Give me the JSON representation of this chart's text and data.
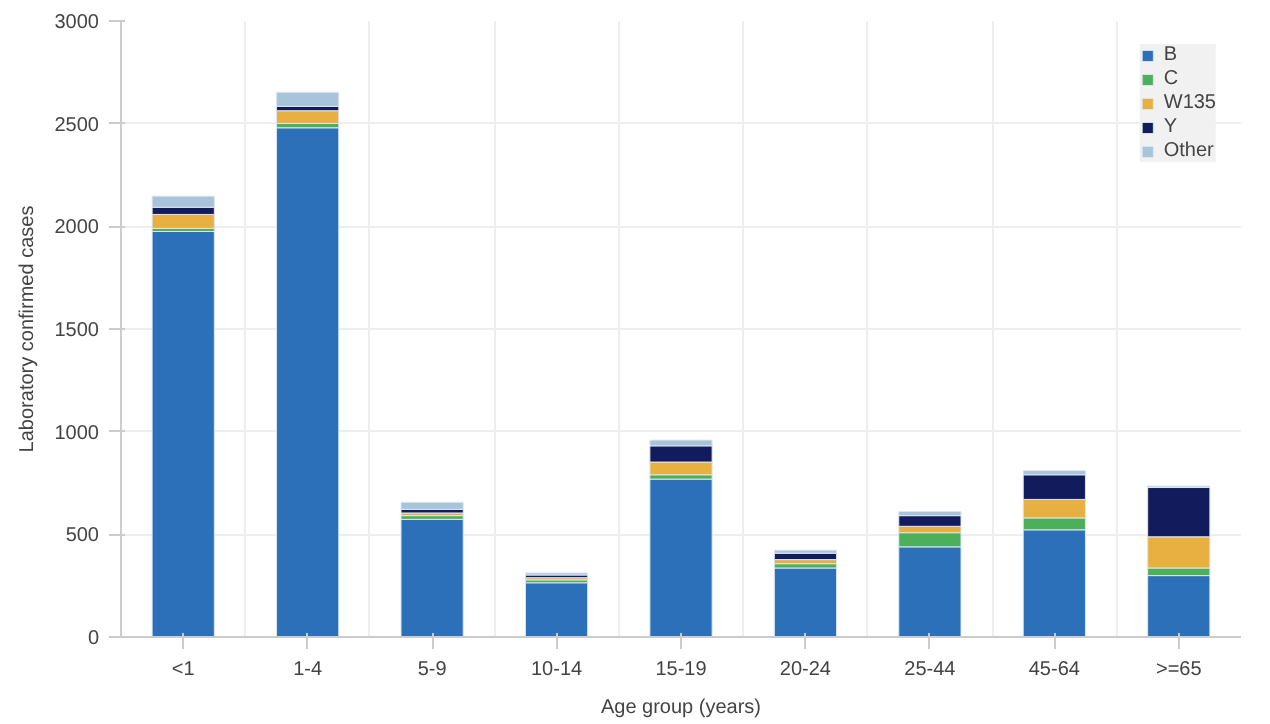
{
  "chart_data": {
    "type": "bar",
    "stacked": true,
    "xlabel": "Age group (years)",
    "ylabel": "Laboratory confirmed cases",
    "categories": [
      "<1",
      "1-4",
      "5-9",
      "10-14",
      "15-19",
      "20-24",
      "25-44",
      "45-64",
      ">=65"
    ],
    "ylim": [
      0,
      3000
    ],
    "yticks": [
      0,
      500,
      1000,
      1500,
      2000,
      2500,
      3000
    ],
    "grid": true,
    "legend": "top right",
    "series": [
      {
        "name": "B",
        "color": "#2b70b8",
        "values": [
          1975,
          2480,
          573,
          264,
          769,
          336,
          439,
          522,
          299
        ]
      },
      {
        "name": "C",
        "color": "#4caf5a",
        "values": [
          15,
          21,
          18,
          14,
          21,
          21,
          69,
          58,
          37
        ]
      },
      {
        "name": "W135",
        "color": "#e8b040",
        "values": [
          68,
          62,
          13,
          11,
          62,
          20,
          31,
          90,
          152
        ]
      },
      {
        "name": "Y",
        "color": "#121c5c",
        "values": [
          35,
          21,
          18,
          13,
          79,
          31,
          52,
          120,
          240
        ]
      },
      {
        "name": "Other",
        "color": "#a8c4da",
        "values": [
          54,
          69,
          34,
          10,
          28,
          15,
          20,
          20,
          7
        ]
      }
    ]
  }
}
